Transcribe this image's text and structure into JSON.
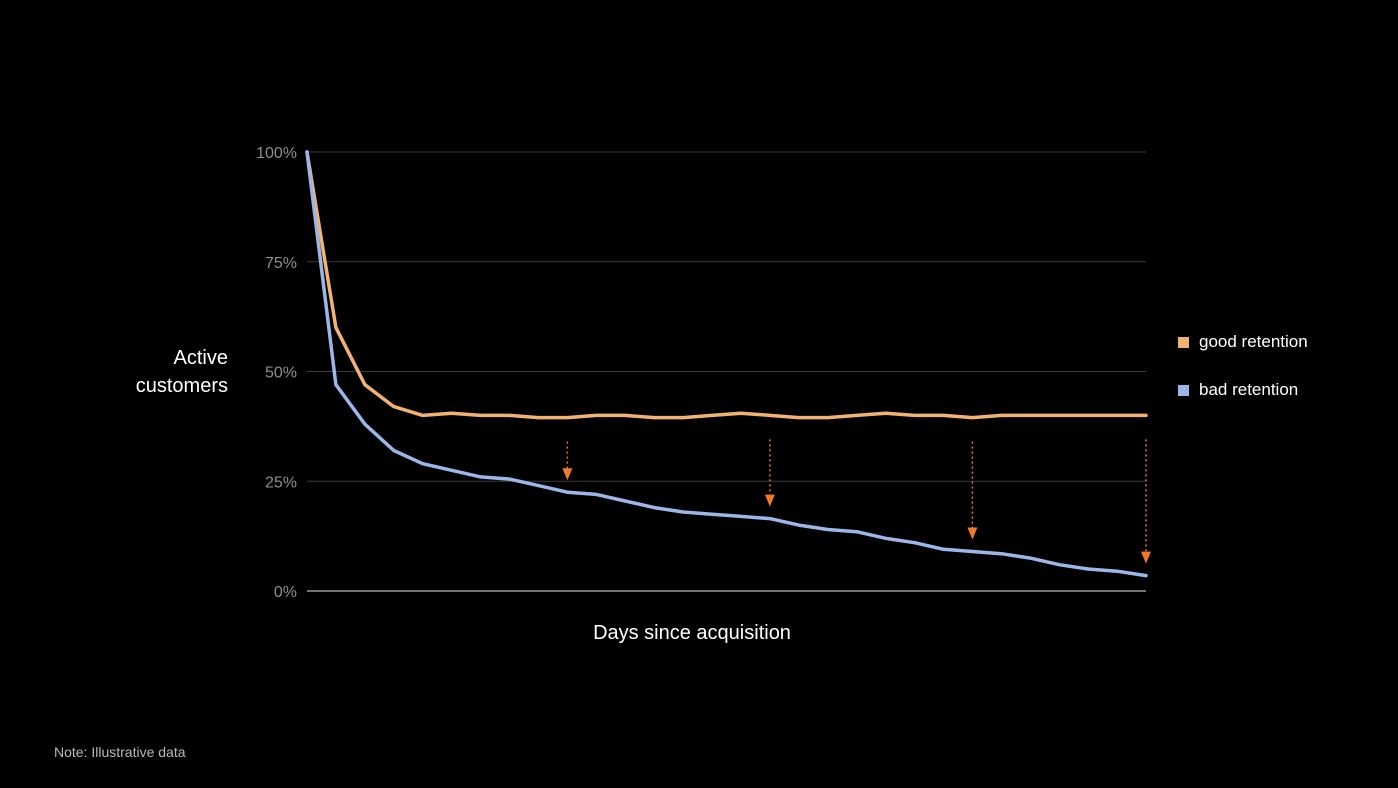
{
  "chart_data": {
    "type": "line",
    "title": "",
    "xlabel": "Days since acquisition",
    "ylabel": "Active customers",
    "ylim": [
      0,
      100
    ],
    "yticks": [
      0,
      25,
      50,
      75,
      100
    ],
    "ytick_labels": [
      "0%",
      "25%",
      "50%",
      "75%",
      "100%"
    ],
    "grid": true,
    "legend_position": "right",
    "x": [
      0,
      1,
      2,
      3,
      4,
      5,
      6,
      7,
      8,
      9,
      10,
      11,
      12,
      13,
      14,
      15,
      16,
      17,
      18,
      19,
      20,
      21,
      22,
      23,
      24,
      25,
      26,
      27,
      28,
      29
    ],
    "series": [
      {
        "name": "good retention",
        "color": "#f2b272",
        "values": [
          100,
          60,
          47,
          42,
          40,
          40.5,
          40,
          40,
          39.5,
          39.5,
          40,
          40,
          39.5,
          39.5,
          40,
          40.5,
          40,
          39.5,
          39.5,
          40,
          40.5,
          40,
          40,
          39.5,
          40,
          40,
          40,
          40,
          40,
          40
        ]
      },
      {
        "name": "bad retention",
        "color": "#9cb6e8",
        "values": [
          100,
          47,
          38,
          32,
          29,
          27.5,
          26,
          25.5,
          24,
          22.5,
          22,
          20.5,
          19,
          18,
          17.5,
          17,
          16.5,
          15,
          14,
          13.5,
          12,
          11,
          9.5,
          9,
          8.5,
          7.5,
          6,
          5,
          4.5,
          3.5
        ]
      }
    ],
    "annotations": [
      {
        "type": "arrow-down",
        "color": "#f07a2a",
        "x": 9
      },
      {
        "type": "arrow-down",
        "color": "#f07a2a",
        "x": 16
      },
      {
        "type": "arrow-down",
        "color": "#f07a2a",
        "x": 23
      },
      {
        "type": "arrow-down",
        "color": "#f07a2a",
        "x": 29
      }
    ]
  },
  "footer": {
    "note": "Note: Illustrative data"
  }
}
